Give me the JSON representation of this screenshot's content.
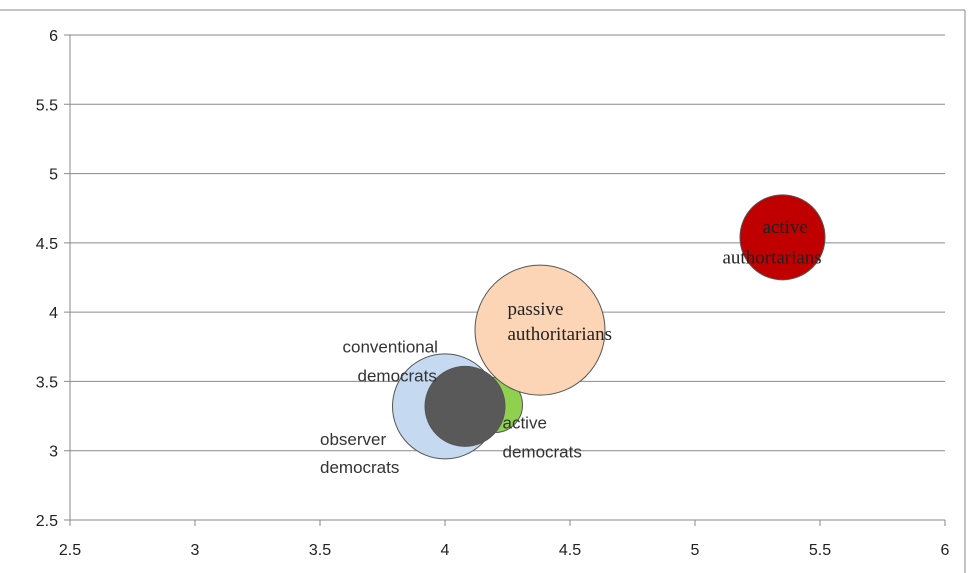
{
  "chart_data": {
    "type": "bubble",
    "xlim": [
      2.5,
      6
    ],
    "ylim": [
      2.5,
      6
    ],
    "x_ticks": [
      "2.5",
      "3",
      "3.5",
      "4",
      "4.5",
      "5",
      "5.5",
      "6"
    ],
    "y_ticks": [
      "2.5",
      "3",
      "3.5",
      "4",
      "4.5",
      "5",
      "5.5",
      "6"
    ],
    "grid": "horizontal",
    "legend": "none",
    "series": [
      {
        "name": "active democrats",
        "label_lines": [
          "active",
          "democrats"
        ],
        "x": 4.2,
        "y": 3.33,
        "size": 0.11,
        "color": "#8fd14f"
      },
      {
        "name": "conventional democrats",
        "label_lines": [
          "conventional",
          "democrats"
        ],
        "x": 4.0,
        "y": 3.32,
        "size": 0.21,
        "color": "#c5d9f1"
      },
      {
        "name": "observer democrats",
        "label_lines": [
          "observer",
          "democrats"
        ],
        "x": 4.08,
        "y": 3.32,
        "size": 0.16,
        "color": "#595959"
      },
      {
        "name": "passive authoritarians",
        "label_lines": [
          "passive",
          "authoritarians"
        ],
        "x": 4.38,
        "y": 3.87,
        "size": 0.26,
        "color": "#fbd5b5"
      },
      {
        "name": "active authoritarians",
        "label_lines": [
          "active",
          "authortarians"
        ],
        "x": 5.35,
        "y": 4.54,
        "size": 0.17,
        "color": "#c00000"
      }
    ]
  }
}
